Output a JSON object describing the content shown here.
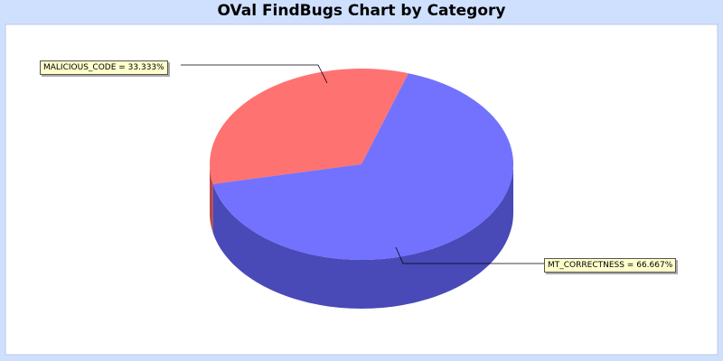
{
  "chart_data": {
    "type": "pie",
    "title": "OVal FindBugs Chart by Category",
    "categories": [
      "MALICIOUS_CODE",
      "MT_CORRECTNESS"
    ],
    "values": [
      33.333,
      66.667
    ],
    "labels": [
      "MALICIOUS_CODE = 33.333%",
      "MT_CORRECTNESS = 66.667%"
    ],
    "colors": [
      "#ff6666",
      "#6666ff"
    ],
    "style": "3d"
  }
}
